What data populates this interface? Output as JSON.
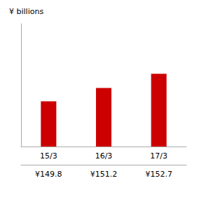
{
  "chart_data": {
    "type": "bar",
    "ylabel": "¥ billions",
    "categories": [
      "15/3",
      "16/3",
      "17/3"
    ],
    "values": [
      149.8,
      151.2,
      152.7
    ],
    "value_labels": [
      "¥149.8",
      "¥151.2",
      "¥152.7"
    ],
    "color": "#cc0000",
    "ylim": [
      145,
      158
    ],
    "grid": false,
    "data_labels": true,
    "tick_labels": "x"
  }
}
